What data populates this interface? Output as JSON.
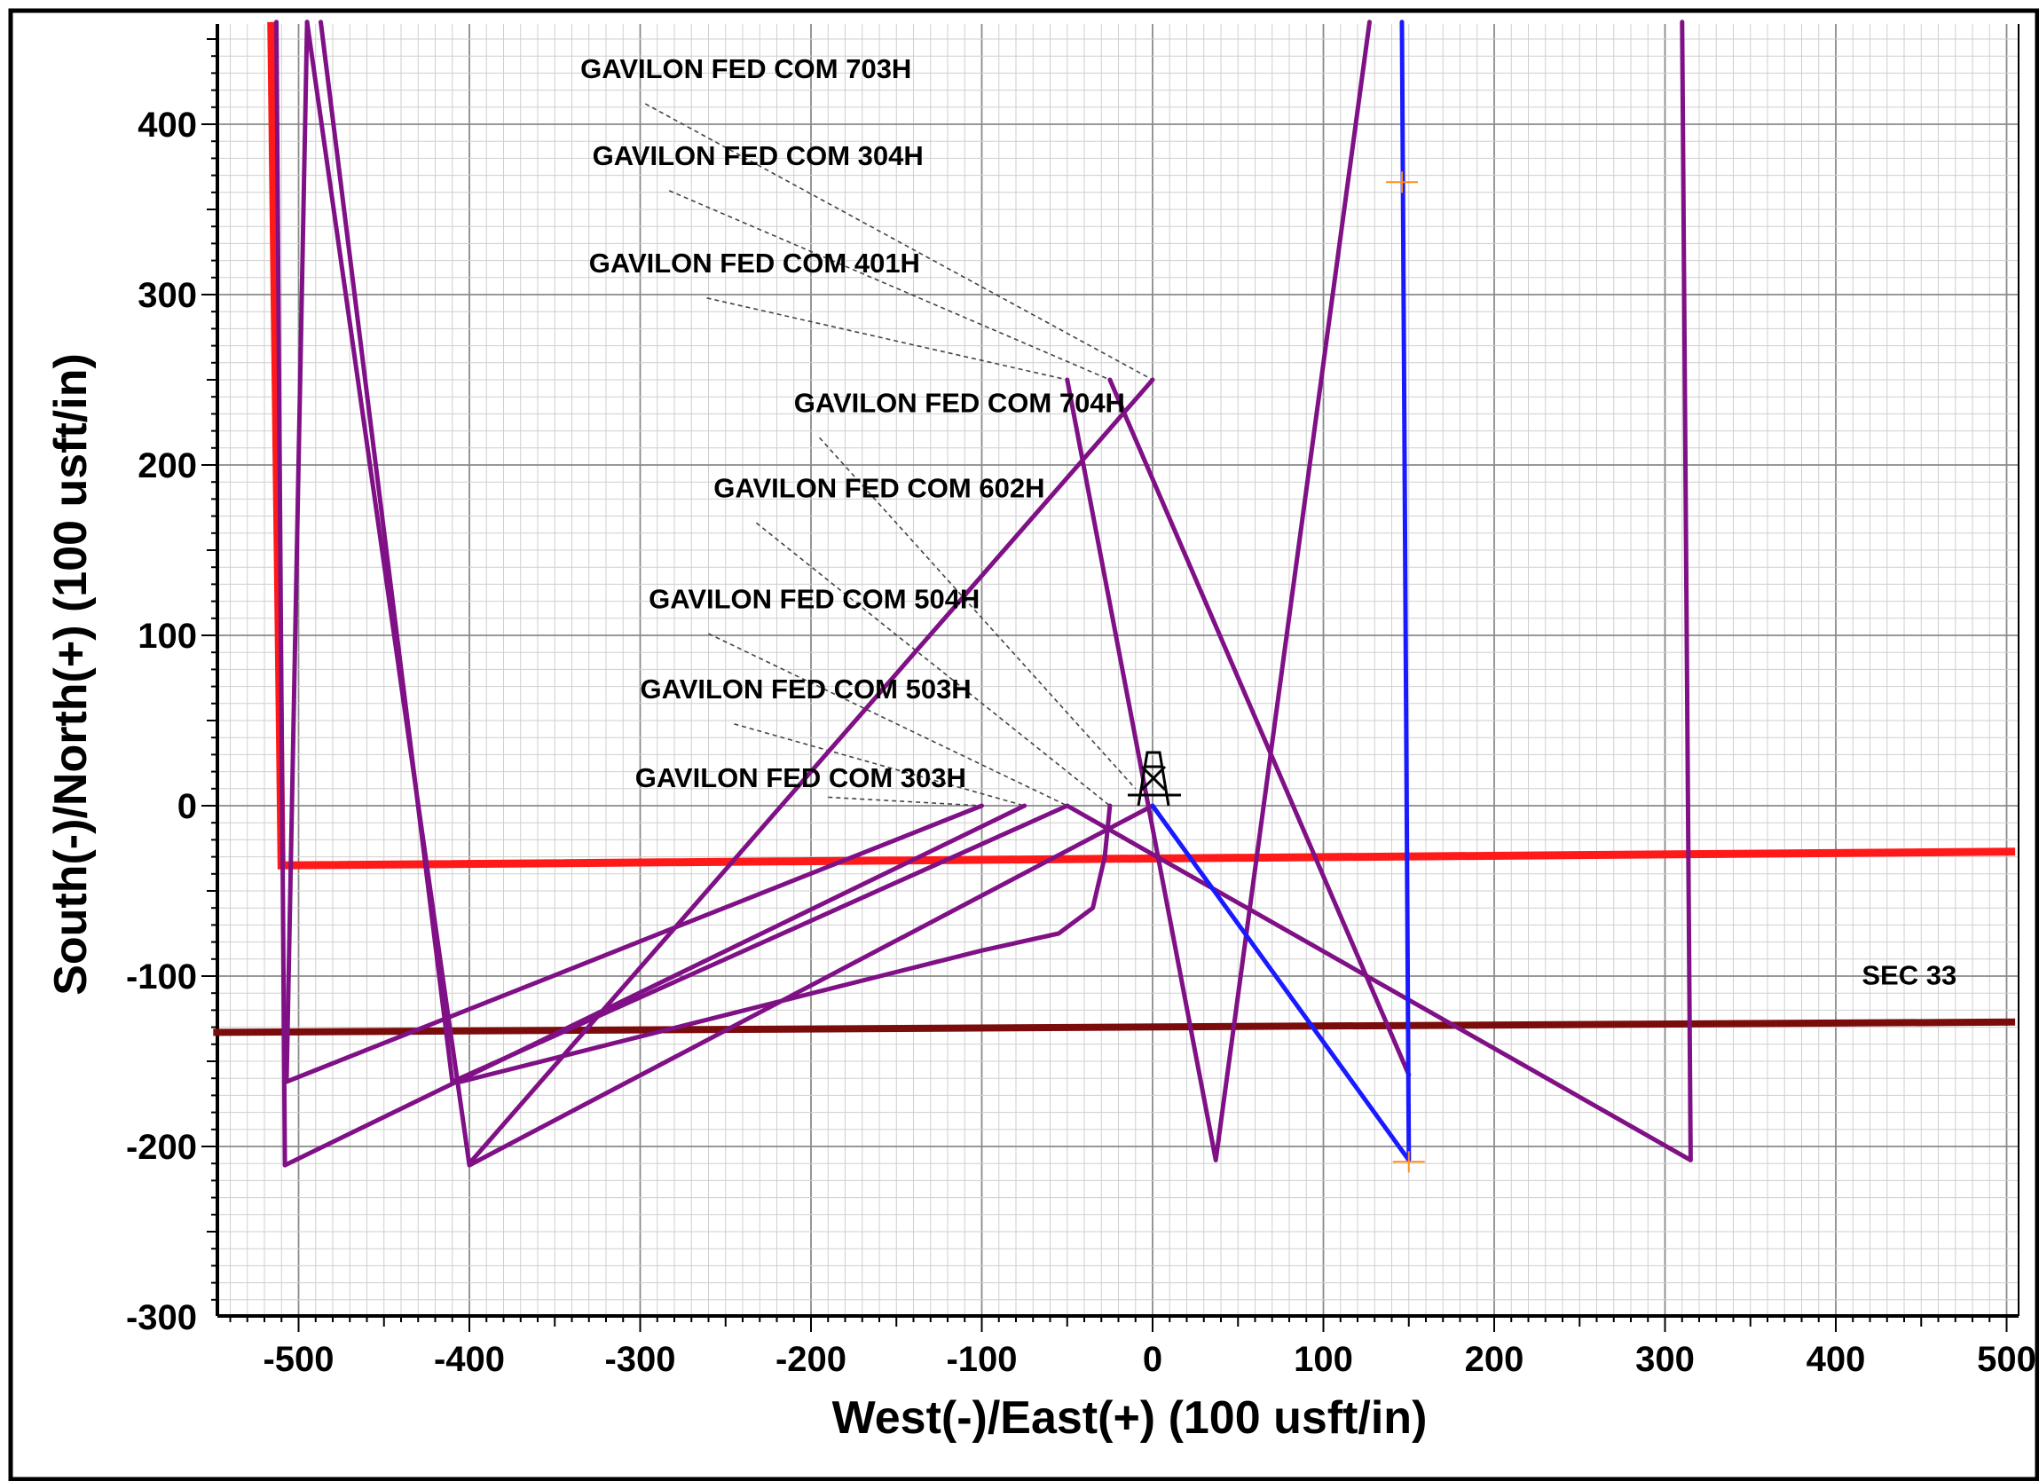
{
  "chart_data": {
    "type": "line",
    "title": "",
    "xlabel": "West(-)/East(+) (100 usft/in)",
    "ylabel": "South(-)/North(+) (100 usft/in)",
    "xlim": [
      -550,
      505
    ],
    "ylim": [
      -300,
      460
    ],
    "grid": true,
    "xticks": [
      -500,
      -400,
      -300,
      -200,
      -100,
      0,
      100,
      200,
      300,
      400,
      500
    ],
    "yticks": [
      -300,
      -200,
      -100,
      0,
      100,
      200,
      300,
      400
    ],
    "xtick_labels": [
      "-500",
      "-400",
      "-300",
      "-200",
      "-100",
      "0",
      "100",
      "200",
      "300",
      "400",
      "500"
    ],
    "ytick_labels": [
      "-300",
      "-200",
      "-100",
      "0",
      "100",
      "200",
      "300",
      "400"
    ],
    "colors": {
      "offset_wells": "#7f1085",
      "plan_well": "#1a1aff",
      "lease_line": "#ff1a1a",
      "section_line": "#7a0c0c",
      "grid_major": "#8a8a8a",
      "grid_minor": "#cfcfcf",
      "target_marker": "#ff8c1a"
    },
    "lease_line": {
      "points": [
        [
          -516,
          460
        ],
        [
          -510,
          -35
        ],
        [
          505,
          -27
        ]
      ]
    },
    "section_line": {
      "points": [
        [
          -550,
          -133
        ],
        [
          505,
          -127
        ]
      ]
    },
    "section_label": "SEC 33",
    "section_label_at": [
      443,
      -105
    ],
    "plan_well": {
      "points": [
        [
          0,
          0
        ],
        [
          150,
          -208
        ],
        [
          146,
          460
        ]
      ]
    },
    "target_markers": [
      [
        146,
        366
      ],
      [
        150,
        -209
      ]
    ],
    "rig_symbol_at": [
      0,
      0
    ],
    "offset_wells": [
      {
        "points": [
          [
            -100,
            0
          ],
          [
            -507,
            -162
          ],
          [
            -495,
            460
          ]
        ]
      },
      {
        "points": [
          [
            -75,
            0
          ],
          [
            -508,
            -211
          ],
          [
            -513,
            460
          ]
        ]
      },
      {
        "points": [
          [
            -50,
            0
          ],
          [
            -410,
            -162
          ],
          [
            -487,
            460
          ]
        ]
      },
      {
        "points": [
          [
            -25,
            0
          ],
          [
            -28,
            -30
          ],
          [
            -35,
            -60
          ],
          [
            -55,
            -75
          ],
          [
            -100,
            -85
          ],
          [
            -405,
            -162
          ]
        ]
      },
      {
        "points": [
          [
            0,
            0
          ],
          [
            -400,
            -211
          ],
          [
            -495,
            460
          ]
        ]
      },
      {
        "points": [
          [
            -50,
            250
          ],
          [
            37,
            -208
          ],
          [
            127,
            460
          ]
        ]
      },
      {
        "points": [
          [
            -25,
            250
          ],
          [
            150,
            -158
          ]
        ]
      },
      {
        "points": [
          [
            -50,
            0
          ],
          [
            315,
            -208
          ],
          [
            310,
            460
          ]
        ]
      },
      {
        "points": [
          [
            0,
            250
          ],
          [
            -400,
            -210
          ]
        ]
      }
    ],
    "well_labels": [
      {
        "text": "GAVILON FED COM 703H",
        "at": [
          -335,
          427
        ],
        "leader": [
          [
            -297,
            412
          ],
          [
            0,
            250
          ]
        ]
      },
      {
        "text": "GAVILON FED COM 304H",
        "at": [
          -328,
          376
        ],
        "leader": [
          [
            -283,
            361
          ],
          [
            -25,
            250
          ]
        ]
      },
      {
        "text": "GAVILON FED COM 401H",
        "at": [
          -330,
          313
        ],
        "leader": [
          [
            -261,
            298
          ],
          [
            -50,
            250
          ]
        ]
      },
      {
        "text": "GAVILON FED COM 704H",
        "at": [
          -210,
          231
        ],
        "leader": [
          [
            -195,
            216
          ],
          [
            -10,
            10
          ]
        ]
      },
      {
        "text": "GAVILON FED COM 602H",
        "at": [
          -257,
          181
        ],
        "leader": [
          [
            -232,
            166
          ],
          [
            -25,
            0
          ]
        ]
      },
      {
        "text": "GAVILON FED COM 504H",
        "at": [
          -295,
          116
        ],
        "leader": [
          [
            -260,
            101
          ],
          [
            -50,
            0
          ]
        ]
      },
      {
        "text": "GAVILON FED COM 503H",
        "at": [
          -300,
          63
        ],
        "leader": [
          [
            -245,
            48
          ],
          [
            -75,
            0
          ]
        ]
      },
      {
        "text": "GAVILON FED COM 303H",
        "at": [
          -303,
          11
        ],
        "leader": [
          [
            -190,
            5
          ],
          [
            -100,
            0
          ]
        ]
      }
    ]
  }
}
